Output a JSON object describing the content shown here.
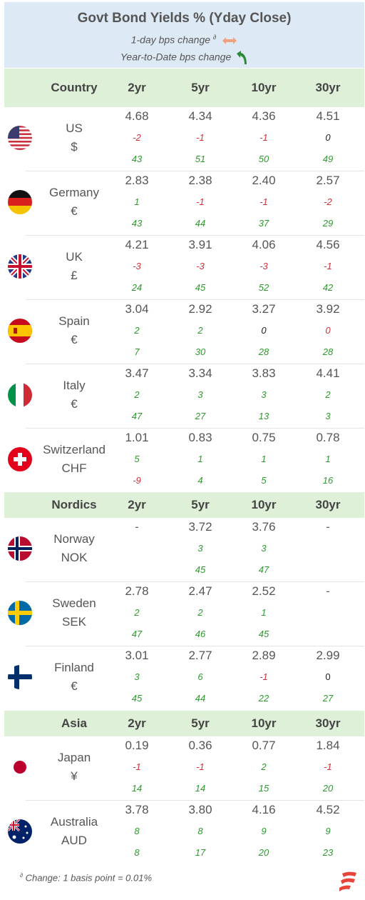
{
  "header": {
    "title": "Govt Bond Yields % (Yday Close)",
    "legend_daily": "1-day bps change",
    "legend_daily_sup": "∂",
    "legend_ytd": "Year-to-Date bps change",
    "daily_icon": "orange-double-arrow-icon",
    "ytd_icon": "green-curved-arrow-icon"
  },
  "sections": [
    {
      "label": "Country",
      "cols": [
        "2yr",
        "5yr",
        "10yr",
        "30yr"
      ]
    },
    {
      "label": "Nordics",
      "cols": [
        "2yr",
        "5yr",
        "10yr",
        "30yr"
      ]
    },
    {
      "label": "Asia",
      "cols": [
        "2yr",
        "5yr",
        "10yr",
        "30yr"
      ]
    }
  ],
  "rows": [
    {
      "country": "US",
      "currency": "$",
      "flag": "us-flag-icon",
      "yield": [
        "4.68",
        "4.34",
        "4.36",
        "4.51"
      ],
      "daily": [
        "-2",
        "-1",
        "-1",
        "0"
      ],
      "ytd": [
        "43",
        "51",
        "50",
        "49"
      ]
    },
    {
      "country": "Germany",
      "currency": "€",
      "flag": "germany-flag-icon",
      "yield": [
        "2.83",
        "2.38",
        "2.40",
        "2.57"
      ],
      "daily": [
        "1",
        "-1",
        "-1",
        "-2"
      ],
      "ytd": [
        "43",
        "44",
        "37",
        "29"
      ]
    },
    {
      "country": "UK",
      "currency": "£",
      "flag": "uk-flag-icon",
      "yield": [
        "4.21",
        "3.91",
        "4.06",
        "4.56"
      ],
      "daily": [
        "-3",
        "-3",
        "-3",
        "-1"
      ],
      "ytd": [
        "24",
        "45",
        "52",
        "42"
      ]
    },
    {
      "country": "Spain",
      "currency": "€",
      "flag": "spain-flag-icon",
      "yield": [
        "3.04",
        "2.92",
        "3.27",
        "3.92"
      ],
      "daily": [
        "2",
        "2",
        "0",
        "0"
      ],
      "ytd": [
        "7",
        "30",
        "28",
        "28"
      ]
    },
    {
      "country": "Italy",
      "currency": "€",
      "flag": "italy-flag-icon",
      "yield": [
        "3.47",
        "3.34",
        "3.83",
        "4.41"
      ],
      "daily": [
        "2",
        "3",
        "3",
        "2"
      ],
      "ytd": [
        "47",
        "27",
        "13",
        "3"
      ]
    },
    {
      "country": "Switzerland",
      "currency": "CHF",
      "flag": "switzerland-flag-icon",
      "yield": [
        "1.01",
        "0.83",
        "0.75",
        "0.78"
      ],
      "daily": [
        "5",
        "1",
        "1",
        "1"
      ],
      "ytd": [
        "-9",
        "4",
        "5",
        "16"
      ]
    },
    {
      "country": "Norway",
      "currency": "NOK",
      "flag": "norway-flag-icon",
      "yield": [
        "-",
        "3.72",
        "3.76",
        "-"
      ],
      "daily": [
        "",
        "3",
        "3",
        ""
      ],
      "ytd": [
        "",
        "45",
        "47",
        ""
      ]
    },
    {
      "country": "Sweden",
      "currency": "SEK",
      "flag": "sweden-flag-icon",
      "yield": [
        "2.78",
        "2.47",
        "2.52",
        "-"
      ],
      "daily": [
        "2",
        "2",
        "1",
        ""
      ],
      "ytd": [
        "47",
        "46",
        "45",
        ""
      ]
    },
    {
      "country": "Finland",
      "currency": "€",
      "flag": "finland-flag-icon",
      "yield": [
        "3.01",
        "2.77",
        "2.89",
        "2.99"
      ],
      "daily": [
        "3",
        "6",
        "-1",
        "0"
      ],
      "ytd": [
        "45",
        "44",
        "22",
        "27"
      ]
    },
    {
      "country": "Japan",
      "currency": "¥",
      "flag": "japan-flag-icon",
      "yield": [
        "0.19",
        "0.36",
        "0.77",
        "1.84"
      ],
      "daily": [
        "-1",
        "-1",
        "2",
        "-1"
      ],
      "ytd": [
        "14",
        "14",
        "15",
        "20"
      ]
    },
    {
      "country": "Australia",
      "currency": "AUD",
      "flag": "australia-flag-icon",
      "yield": [
        "3.78",
        "3.80",
        "4.16",
        "4.52"
      ],
      "daily": [
        "8",
        "8",
        "9",
        "9"
      ],
      "ytd": [
        "8",
        "17",
        "20",
        "23"
      ]
    }
  ],
  "colors": {
    "positive": "#2e9a2e",
    "negative": "#d0303a",
    "header_bg": "#dde9f4",
    "section_bg": "#dff0d8"
  },
  "footer": {
    "sup": "∂",
    "text": "Change: 1 basis point = 0.01%",
    "logo": "brand-logo-icon"
  }
}
